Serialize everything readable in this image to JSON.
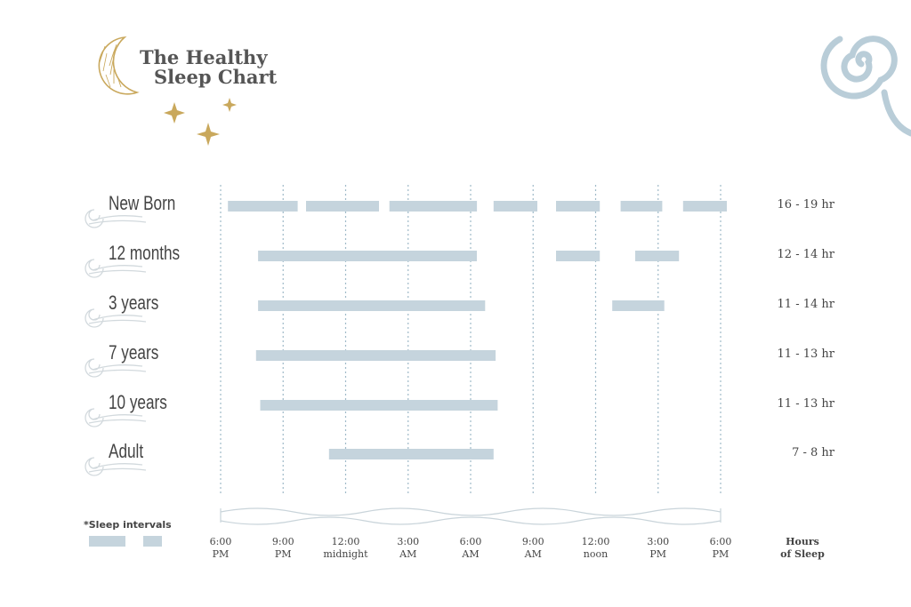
{
  "title": {
    "line1": "The Healthy",
    "line2": "Sleep Chart"
  },
  "colors": {
    "bar": "#c5d4dd",
    "gridline": "#9fbac8",
    "accent_gold": "#c9a85c",
    "swirl": "#b9cdd8",
    "text": "#444444"
  },
  "icons": [
    "moon-icon",
    "star-icon",
    "swirl-icon",
    "wave-icon"
  ],
  "legend": {
    "title": "*Sleep intervals"
  },
  "hours_header": {
    "line1": "Hours",
    "line2": "of Sleep"
  },
  "chart_data": {
    "type": "bar",
    "orientation": "horizontal-range",
    "x_unit": "hours since 6:00 PM",
    "xlim": [
      0,
      24
    ],
    "grid": true,
    "x_ticks": [
      {
        "value": 0,
        "line1": "6:00",
        "line2": "PM"
      },
      {
        "value": 3,
        "line1": "9:00",
        "line2": "PM"
      },
      {
        "value": 6,
        "line1": "12:00",
        "line2": "midnight"
      },
      {
        "value": 9,
        "line1": "3:00",
        "line2": "AM"
      },
      {
        "value": 12,
        "line1": "6:00",
        "line2": "AM"
      },
      {
        "value": 15,
        "line1": "9:00",
        "line2": "AM"
      },
      {
        "value": 18,
        "line1": "12:00",
        "line2": "noon"
      },
      {
        "value": 21,
        "line1": "3:00",
        "line2": "PM"
      },
      {
        "value": 24,
        "line1": "6:00",
        "line2": "PM"
      }
    ],
    "rows": [
      {
        "label": "New Born",
        "hours": "16 - 19 hr",
        "intervals": [
          [
            0.35,
            3.7
          ],
          [
            4.1,
            7.6
          ],
          [
            8.1,
            12.3
          ],
          [
            13.1,
            15.2
          ],
          [
            16.1,
            18.2
          ],
          [
            19.2,
            21.2
          ],
          [
            22.2,
            24.3
          ]
        ]
      },
      {
        "label": "12 months",
        "hours": "12 - 14 hr",
        "intervals": [
          [
            1.8,
            12.3
          ],
          [
            16.1,
            18.2
          ],
          [
            19.9,
            22.0
          ]
        ]
      },
      {
        "label": "3 years",
        "hours": "11 - 14 hr",
        "intervals": [
          [
            1.8,
            12.7
          ],
          [
            18.8,
            21.3
          ]
        ]
      },
      {
        "label": "7 years",
        "hours": "11 - 13 hr",
        "intervals": [
          [
            1.7,
            13.2
          ]
        ]
      },
      {
        "label": "10 years",
        "hours": "11 - 13 hr",
        "intervals": [
          [
            1.9,
            13.3
          ]
        ]
      },
      {
        "label": "Adult",
        "hours": "7 - 8 hr",
        "intervals": [
          [
            5.2,
            13.1
          ]
        ]
      }
    ]
  }
}
